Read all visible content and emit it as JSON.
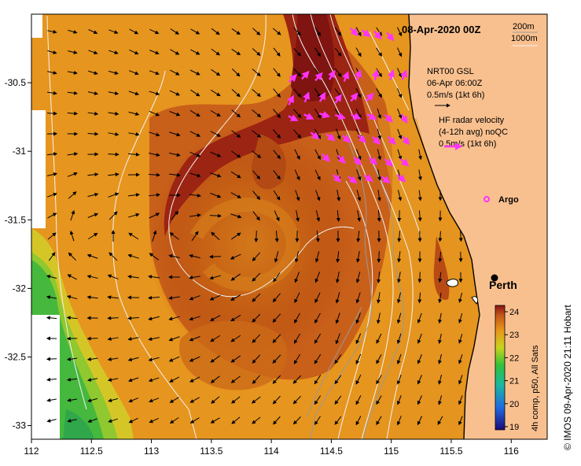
{
  "title": "08-Apr-2020 00Z",
  "contour_legend": [
    "200m",
    "1000m"
  ],
  "gsl_legend": {
    "line1": "NRT00 GSL",
    "line2": "06-Apr 06:00Z",
    "line3": "0.5m/s (1kt 6h)"
  },
  "hf_legend": {
    "line1": "HF radar velocity",
    "line2": "(4-12h avg) noQC",
    "line3": "0.5m/s (1kt 6h)"
  },
  "argo_label": "Argo",
  "city_label": "Perth",
  "colorbar": {
    "ticks": [
      "24",
      "23",
      "22",
      "21",
      "20",
      "19"
    ],
    "title": "4h comp, p50, All Sats"
  },
  "credit": "© IMOS 09-Apr-2020 21:11 Hobart",
  "axes": {
    "x_ticks": [
      "112",
      "112.5",
      "113",
      "113.5",
      "114",
      "114.5",
      "115",
      "115.5",
      "116"
    ],
    "y_ticks": [
      "-30.5",
      "-31",
      "-31.5",
      "-32",
      "-32.5",
      "-33"
    ],
    "x_range": [
      112,
      116.3
    ],
    "y_range": [
      -33.1,
      -30.0
    ]
  },
  "colors": {
    "land": "#f9c08f",
    "hf_arrow": "#ff33ff",
    "warm": "#b84510",
    "hot": "#8e1a12",
    "mid": "#e08d1a",
    "cool": "#cfc421",
    "cold": "#30b542"
  }
}
